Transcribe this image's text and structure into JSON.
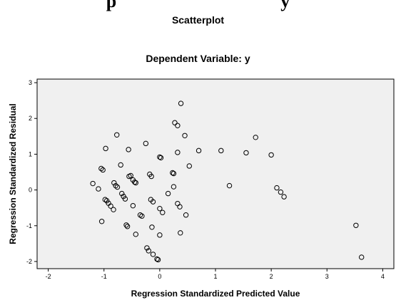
{
  "page": {
    "cut_heading": "p",
    "cut_heading_tail": "y"
  },
  "chart_data": {
    "type": "scatter",
    "chart_type_label": "Scatterplot",
    "title": "Dependent Variable: y",
    "xlabel": "Regression Standardized Predicted Value",
    "ylabel": "Regression Standardized Residual",
    "xlim": [
      -2.2,
      4.2
    ],
    "ylim": [
      -2.2,
      3.1
    ],
    "xticks": [
      -2,
      -1,
      0,
      1,
      2,
      3,
      4
    ],
    "yticks": [
      -2,
      -1,
      0,
      1,
      2,
      3
    ],
    "grid": false,
    "plot_background": "#f0f0f0",
    "marker_color": "#000000",
    "marker": "open-circle",
    "points": [
      [
        -1.2,
        0.18
      ],
      [
        -1.1,
        0.03
      ],
      [
        -1.05,
        0.6
      ],
      [
        -1.02,
        0.56
      ],
      [
        -1.04,
        -0.88
      ],
      [
        -0.97,
        1.16
      ],
      [
        -0.98,
        -0.27
      ],
      [
        -0.95,
        -0.3
      ],
      [
        -0.92,
        -0.37
      ],
      [
        -0.88,
        -0.45
      ],
      [
        -0.83,
        -0.55
      ],
      [
        -0.82,
        0.2
      ],
      [
        -0.79,
        0.12
      ],
      [
        -0.76,
        0.08
      ],
      [
        -0.77,
        1.54
      ],
      [
        -0.7,
        0.7
      ],
      [
        -0.68,
        -0.1
      ],
      [
        -0.65,
        -0.18
      ],
      [
        -0.62,
        -0.25
      ],
      [
        -0.6,
        -0.98
      ],
      [
        -0.58,
        -1.02
      ],
      [
        -0.56,
        1.13
      ],
      [
        -0.55,
        0.38
      ],
      [
        -0.52,
        0.4
      ],
      [
        -0.48,
        0.28
      ],
      [
        -0.45,
        0.22
      ],
      [
        -0.43,
        0.2
      ],
      [
        -0.48,
        -0.44
      ],
      [
        -0.43,
        -1.24
      ],
      [
        -0.35,
        -0.7
      ],
      [
        -0.32,
        -0.73
      ],
      [
        -0.25,
        1.3
      ],
      [
        -0.23,
        -1.62
      ],
      [
        -0.2,
        -1.7
      ],
      [
        -0.18,
        0.44
      ],
      [
        -0.15,
        0.38
      ],
      [
        -0.16,
        -0.27
      ],
      [
        -0.12,
        -0.33
      ],
      [
        -0.14,
        -1.04
      ],
      [
        -0.12,
        -1.8
      ],
      [
        -0.05,
        -1.93
      ],
      [
        -0.03,
        -1.95
      ],
      [
        0.0,
        0.92
      ],
      [
        0.02,
        0.9
      ],
      [
        0.0,
        -0.52
      ],
      [
        0.05,
        -0.63
      ],
      [
        0.0,
        -1.26
      ],
      [
        0.15,
        -0.1
      ],
      [
        0.23,
        0.48
      ],
      [
        0.25,
        0.46
      ],
      [
        0.25,
        0.09
      ],
      [
        0.27,
        1.88
      ],
      [
        0.32,
        1.8
      ],
      [
        0.32,
        1.05
      ],
      [
        0.32,
        -0.38
      ],
      [
        0.36,
        -0.47
      ],
      [
        0.37,
        -1.2
      ],
      [
        0.38,
        2.42
      ],
      [
        0.45,
        1.52
      ],
      [
        0.47,
        -0.7
      ],
      [
        0.53,
        0.67
      ],
      [
        0.7,
        1.1
      ],
      [
        1.1,
        1.1
      ],
      [
        1.25,
        0.12
      ],
      [
        1.55,
        1.04
      ],
      [
        1.72,
        1.47
      ],
      [
        2.0,
        0.98
      ],
      [
        2.1,
        0.06
      ],
      [
        2.17,
        -0.06
      ],
      [
        2.23,
        -0.19
      ],
      [
        3.52,
        -0.99
      ],
      [
        3.62,
        -1.88
      ]
    ]
  }
}
